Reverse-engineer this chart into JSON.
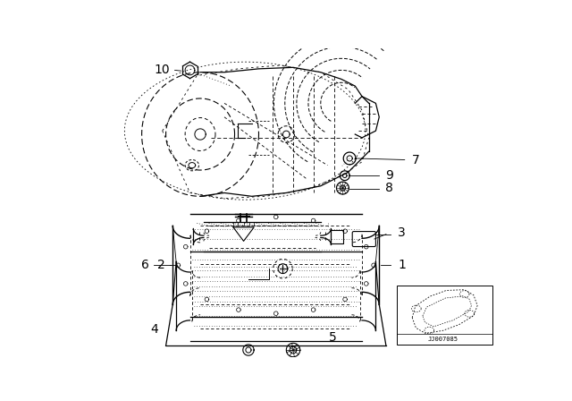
{
  "background_color": "#ffffff",
  "line_color": "#000000",
  "fig_width": 6.4,
  "fig_height": 4.48,
  "dpi": 100,
  "label_fontsize": 10,
  "small_fontsize": 7
}
